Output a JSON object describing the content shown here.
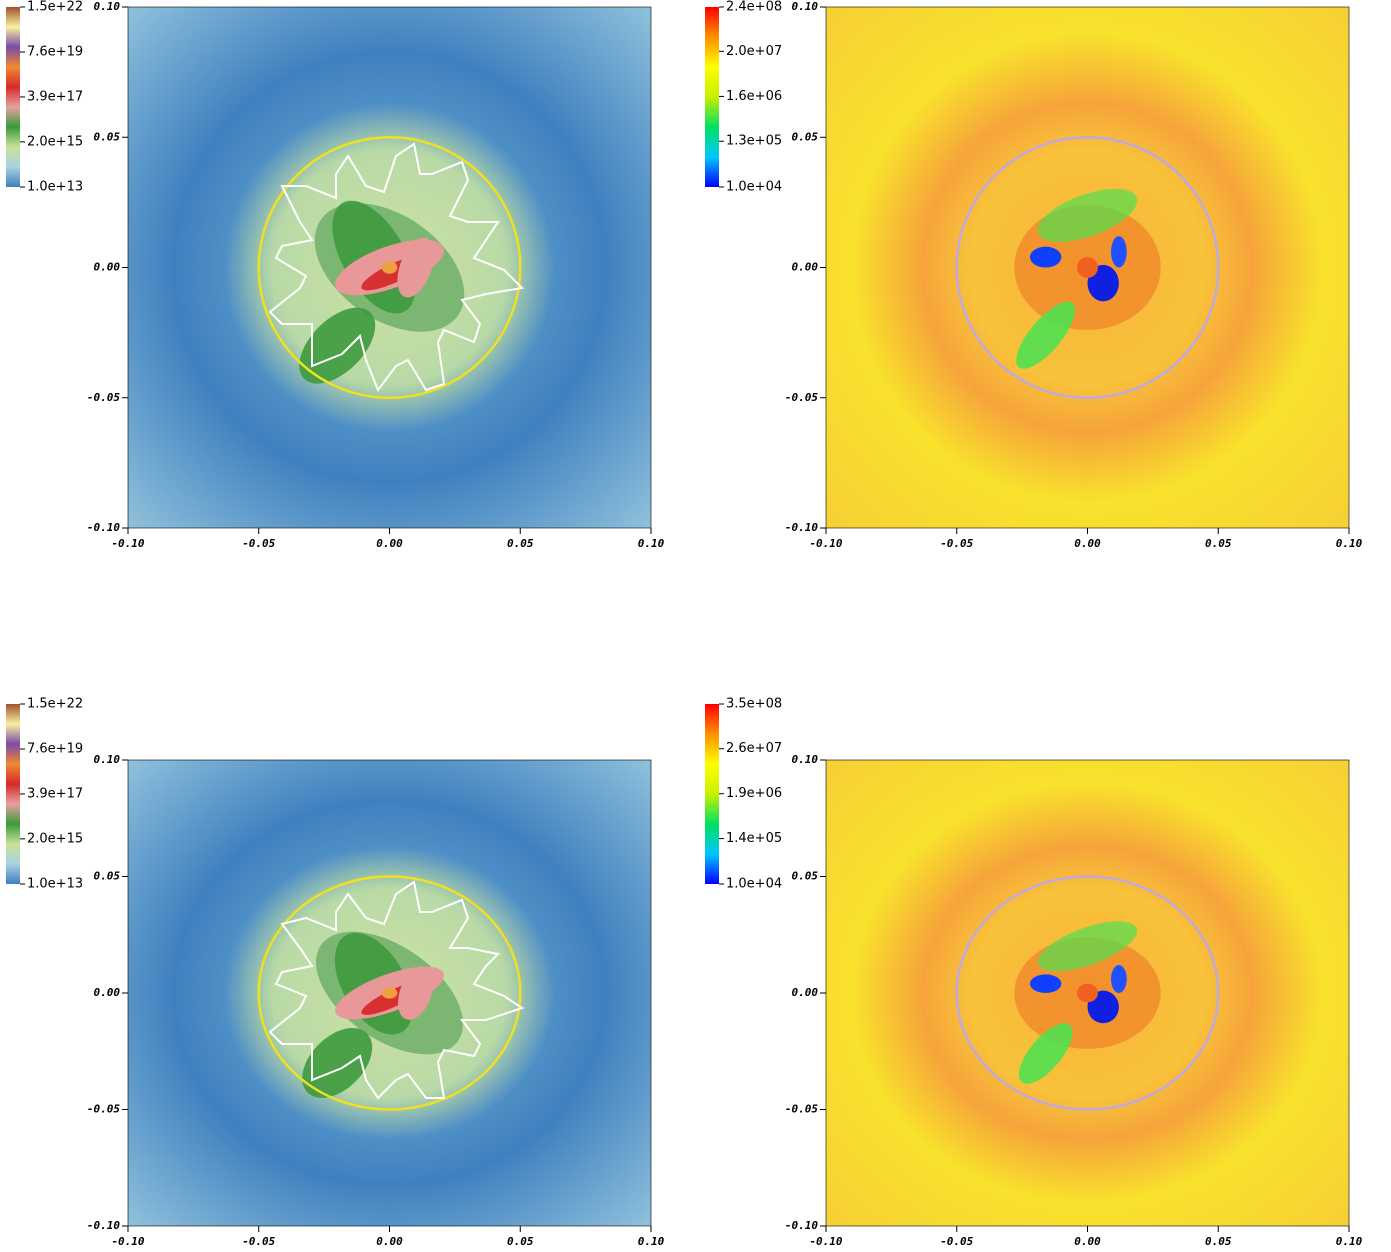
{
  "chart_data": [
    {
      "type": "heatmap",
      "xlim": [
        -0.1,
        0.1
      ],
      "ylim": [
        -0.1,
        0.1
      ],
      "xticks": [
        {
          "value": -0.1,
          "label": "-0.10"
        },
        {
          "value": -0.05,
          "label": "-0.05"
        },
        {
          "value": 0,
          "label": "0.00"
        },
        {
          "value": 0.05,
          "label": "0.05"
        },
        {
          "value": 0.1,
          "label": "0.10"
        }
      ],
      "yticks": [
        {
          "value": -0.1,
          "label": "-0.10"
        },
        {
          "value": -0.05,
          "label": "-0.05"
        },
        {
          "value": 0,
          "label": "0.00"
        },
        {
          "value": 0.05,
          "label": "0.05"
        },
        {
          "value": 0.1,
          "label": "0.10"
        }
      ],
      "colorbar": {
        "scale": "log",
        "lim": [
          10000000000000.0,
          1.5e+22
        ],
        "ticks": [
          {
            "value": 10000000000000.0,
            "label": "1.0e+13"
          },
          {
            "value": 2000000000000000.0,
            "label": "2.0e+15"
          },
          {
            "value": 3.9e+17,
            "label": "3.9e+17"
          },
          {
            "value": 7.6e+19,
            "label": "7.6e+19"
          },
          {
            "value": 1.5e+22,
            "label": "1.5e+22"
          }
        ],
        "colors": [
          "#3f7fbf",
          "#a8d2e0",
          "#c8e29a",
          "#3a9a3a",
          "#e8a0a0",
          "#d42a2a",
          "#f08a30",
          "#7b4aa8",
          "#f8f0a0",
          "#a0522d"
        ]
      }
    },
    {
      "type": "heatmap",
      "xlim": [
        -0.1,
        0.1
      ],
      "ylim": [
        -0.1,
        0.1
      ],
      "xticks": [
        {
          "value": -0.1,
          "label": "-0.10"
        },
        {
          "value": -0.05,
          "label": "-0.05"
        },
        {
          "value": 0,
          "label": "0.00"
        },
        {
          "value": 0.05,
          "label": "0.05"
        },
        {
          "value": 0.1,
          "label": "0.10"
        }
      ],
      "yticks": [
        {
          "value": -0.1,
          "label": "-0.10"
        },
        {
          "value": -0.05,
          "label": "-0.05"
        },
        {
          "value": 0,
          "label": "0.00"
        },
        {
          "value": 0.05,
          "label": "0.05"
        },
        {
          "value": 0.1,
          "label": "0.10"
        }
      ],
      "colorbar": {
        "scale": "log",
        "lim": [
          10000.0,
          240000000.0
        ],
        "ticks": [
          {
            "value": 10000.0,
            "label": "1.0e+04"
          },
          {
            "value": 130000.0,
            "label": "1.3e+05"
          },
          {
            "value": 1600000.0,
            "label": "1.6e+06"
          },
          {
            "value": 20000000.0,
            "label": "2.0e+07"
          },
          {
            "value": 240000000.0,
            "label": "2.4e+08"
          }
        ],
        "colors": [
          "#0000ff",
          "#00c8ff",
          "#00e060",
          "#c8f000",
          "#ffff00",
          "#ff9000",
          "#ff0000"
        ]
      }
    },
    {
      "type": "heatmap",
      "xlim": [
        -0.1,
        0.1
      ],
      "ylim": [
        -0.1,
        0.1
      ],
      "xticks": [
        {
          "value": -0.1,
          "label": "-0.10"
        },
        {
          "value": -0.05,
          "label": "-0.05"
        },
        {
          "value": 0,
          "label": "0.00"
        },
        {
          "value": 0.05,
          "label": "0.05"
        },
        {
          "value": 0.1,
          "label": "0.10"
        }
      ],
      "yticks": [
        {
          "value": -0.1,
          "label": "-0.10"
        },
        {
          "value": -0.05,
          "label": "-0.05"
        },
        {
          "value": 0,
          "label": "0.00"
        },
        {
          "value": 0.05,
          "label": "0.05"
        },
        {
          "value": 0.1,
          "label": "0.10"
        }
      ],
      "colorbar": {
        "scale": "log",
        "lim": [
          10000000000000.0,
          1.5e+22
        ],
        "ticks": [
          {
            "value": 10000000000000.0,
            "label": "1.0e+13"
          },
          {
            "value": 2000000000000000.0,
            "label": "2.0e+15"
          },
          {
            "value": 3.9e+17,
            "label": "3.9e+17"
          },
          {
            "value": 7.6e+19,
            "label": "7.6e+19"
          },
          {
            "value": 1.5e+22,
            "label": "1.5e+22"
          }
        ],
        "colors": [
          "#3f7fbf",
          "#a8d2e0",
          "#c8e29a",
          "#3a9a3a",
          "#e8a0a0",
          "#d42a2a",
          "#f08a30",
          "#7b4aa8",
          "#f8f0a0",
          "#a0522d"
        ]
      }
    },
    {
      "type": "heatmap",
      "xlim": [
        -0.1,
        0.1
      ],
      "ylim": [
        -0.1,
        0.1
      ],
      "xticks": [
        {
          "value": -0.1,
          "label": "-0.10"
        },
        {
          "value": -0.05,
          "label": "-0.05"
        },
        {
          "value": 0,
          "label": "0.00"
        },
        {
          "value": 0.05,
          "label": "0.05"
        },
        {
          "value": 0.1,
          "label": "0.10"
        }
      ],
      "yticks": [
        {
          "value": -0.1,
          "label": "-0.10"
        },
        {
          "value": -0.05,
          "label": "-0.05"
        },
        {
          "value": 0,
          "label": "0.00"
        },
        {
          "value": 0.05,
          "label": "0.05"
        },
        {
          "value": 0.1,
          "label": "0.10"
        }
      ],
      "colorbar": {
        "scale": "log",
        "lim": [
          10000.0,
          350000000.0
        ],
        "ticks": [
          {
            "value": 10000.0,
            "label": "1.0e+04"
          },
          {
            "value": 140000.0,
            "label": "1.4e+05"
          },
          {
            "value": 1900000.0,
            "label": "1.9e+06"
          },
          {
            "value": 26000000.0,
            "label": "2.6e+07"
          },
          {
            "value": 350000000.0,
            "label": "3.5e+08"
          }
        ],
        "colors": [
          "#0000ff",
          "#00c8ff",
          "#00e060",
          "#c8f000",
          "#ffff00",
          "#ff9000",
          "#ff0000"
        ]
      }
    }
  ]
}
